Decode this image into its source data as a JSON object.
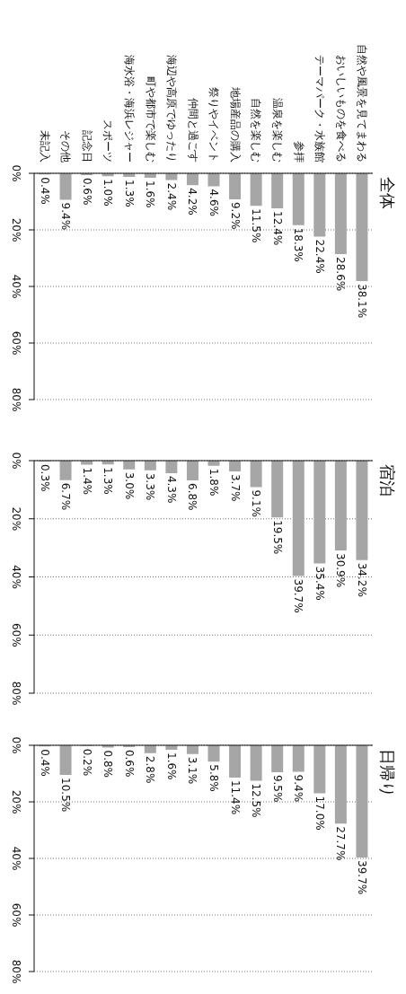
{
  "chart_data": [
    {
      "type": "bar",
      "title": "全体",
      "categories": [
        "未記入",
        "その他",
        "記念日",
        "スポーツ",
        "海水浴・海浜レジャー",
        "町や都市で楽しむ",
        "海辺や高原でゆったり",
        "仲間と過ごす",
        "祭りやイベント",
        "地場産品の購入",
        "自然を楽しむ",
        "温泉を楽しむ",
        "参拝",
        "テーマパーク・水族館",
        "おいしいものを食べる",
        "自然や風景を見てまわる"
      ],
      "values": [
        0.4,
        9.4,
        0.6,
        1.0,
        1.3,
        1.6,
        2.4,
        4.2,
        4.6,
        9.2,
        11.5,
        12.4,
        18.3,
        22.4,
        28.6,
        38.1
      ],
      "value_labels": [
        "0.4%",
        "9.4%",
        "0.6%",
        "1.0%",
        "1.3%",
        "1.6%",
        "2.4%",
        "4.2%",
        "4.6%",
        "9.2%",
        "11.5%",
        "12.4%",
        "18.3%",
        "22.4%",
        "28.6%",
        "38.1%"
      ],
      "color": "#a6a6a6",
      "ylim": [
        80,
        0
      ],
      "yticks": [
        {
          "value": 0,
          "label": "0%"
        },
        {
          "value": 20,
          "label": "20%"
        },
        {
          "value": 40,
          "label": "40%"
        },
        {
          "value": 60,
          "label": "60%"
        },
        {
          "value": 80,
          "label": "80%"
        }
      ],
      "grid": "y"
    },
    {
      "type": "bar",
      "title": "宿泊",
      "categories": [
        null,
        null,
        null,
        null,
        null,
        null,
        null,
        null,
        null,
        null,
        null,
        null,
        null,
        null,
        null,
        null
      ],
      "values": [
        0.3,
        6.7,
        1.4,
        1.3,
        3.0,
        3.3,
        4.3,
        6.8,
        1.8,
        3.7,
        9.1,
        19.5,
        39.7,
        35.4,
        30.9,
        34.2
      ],
      "value_labels": [
        "0.3%",
        "6.7%",
        "1.4%",
        "1.3%",
        "3.0%",
        "3.3%",
        "4.3%",
        "6.8%",
        "1.8%",
        "3.7%",
        "9.1%",
        "19.5%",
        "39.7%",
        "35.4%",
        "30.9%",
        "34.2%"
      ],
      "color": "#a6a6a6",
      "ylim": [
        80,
        0
      ],
      "yticks": [
        {
          "value": 0,
          "label": "0%"
        },
        {
          "value": 20,
          "label": "20%"
        },
        {
          "value": 40,
          "label": "40%"
        },
        {
          "value": 60,
          "label": "60%"
        },
        {
          "value": 80,
          "label": "80%"
        }
      ],
      "grid": "y",
      "tick_labels": "y"
    },
    {
      "type": "bar",
      "title": "日帰り",
      "categories": [
        null,
        null,
        null,
        null,
        null,
        null,
        null,
        null,
        null,
        null,
        null,
        null,
        null,
        null,
        null,
        null
      ],
      "values": [
        0.4,
        10.5,
        0.2,
        0.8,
        0.6,
        2.8,
        1.6,
        3.1,
        5.8,
        11.4,
        12.5,
        9.5,
        9.4,
        17.0,
        27.7,
        39.7
      ],
      "value_labels": [
        "0.4%",
        "10.5%",
        "0.2%",
        "0.8%",
        "0.6%",
        "2.8%",
        "1.6%",
        "3.1%",
        "5.8%",
        "11.4%",
        "12.5%",
        "9.5%",
        "9.4%",
        "17.0%",
        "27.7%",
        "39.7%"
      ],
      "color": "#a6a6a6",
      "ylim": [
        80,
        0
      ],
      "yticks": [
        {
          "value": 0,
          "label": "0%"
        },
        {
          "value": 20,
          "label": "20%"
        },
        {
          "value": 40,
          "label": "40%"
        },
        {
          "value": 60,
          "label": "60%"
        },
        {
          "value": 80,
          "label": "80%"
        }
      ],
      "grid": "y",
      "tick_labels": "y"
    }
  ]
}
